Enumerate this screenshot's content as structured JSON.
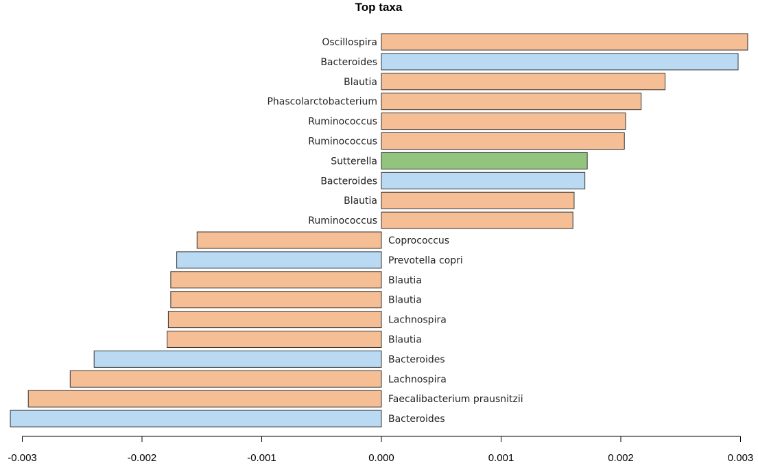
{
  "chart_data": {
    "type": "bar",
    "orientation": "horizontal",
    "title": "Top taxa",
    "xlabel": "",
    "ylabel": "",
    "xlim": [
      -0.003,
      0.003
    ],
    "xticks": [
      "-0.003",
      "-0.002",
      "-0.001",
      "0.000",
      "0.001",
      "0.002",
      "0.003"
    ],
    "xtick_values": [
      -0.003,
      -0.002,
      -0.001,
      0,
      0.001,
      0.002,
      0.003
    ],
    "colors": {
      "orange": "#F5BE94",
      "blue": "#B9DAF2",
      "green": "#93C47D"
    },
    "bars": [
      {
        "label": "Oscillospira",
        "value": 0.00306,
        "color": "orange"
      },
      {
        "label": "Bacteroides",
        "value": 0.00298,
        "color": "blue"
      },
      {
        "label": "Blautia",
        "value": 0.00237,
        "color": "orange"
      },
      {
        "label": "Phascolarctobacterium",
        "value": 0.00217,
        "color": "orange"
      },
      {
        "label": "Ruminococcus",
        "value": 0.00204,
        "color": "orange"
      },
      {
        "label": "Ruminococcus",
        "value": 0.00203,
        "color": "orange"
      },
      {
        "label": "Sutterella",
        "value": 0.00172,
        "color": "green"
      },
      {
        "label": "Bacteroides",
        "value": 0.0017,
        "color": "blue"
      },
      {
        "label": "Blautia",
        "value": 0.00161,
        "color": "orange"
      },
      {
        "label": "Ruminococcus",
        "value": 0.0016,
        "color": "orange"
      },
      {
        "label": "Coprococcus",
        "value": -0.00154,
        "color": "orange"
      },
      {
        "label": "Prevotella copri",
        "value": -0.00171,
        "color": "blue"
      },
      {
        "label": "Blautia",
        "value": -0.00176,
        "color": "orange"
      },
      {
        "label": "Blautia",
        "value": -0.00176,
        "color": "orange"
      },
      {
        "label": "Lachnospira",
        "value": -0.00178,
        "color": "orange"
      },
      {
        "label": "Blautia",
        "value": -0.00179,
        "color": "orange"
      },
      {
        "label": "Bacteroides",
        "value": -0.0024,
        "color": "blue"
      },
      {
        "label": "Lachnospira",
        "value": -0.0026,
        "color": "orange"
      },
      {
        "label": "Faecalibacterium prausnitzii",
        "value": -0.00295,
        "color": "orange"
      },
      {
        "label": "Bacteroides",
        "value": -0.0031,
        "color": "blue"
      }
    ]
  }
}
